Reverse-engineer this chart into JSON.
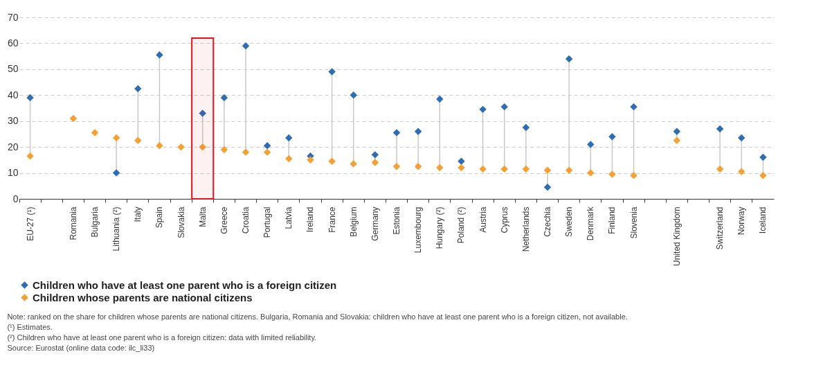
{
  "chart_data": {
    "type": "scatter",
    "categories": [
      "EU-27 (¹)",
      null,
      "Romania",
      "Bulgaria",
      "Lithuania (²)",
      "Italy",
      "Spain",
      "Slovakia",
      "Malta",
      "Greece",
      "Croatia",
      "Portugal",
      "Latvia",
      "Ireland",
      "France",
      "Belgium",
      "Germany",
      "Estonia",
      "Luxembourg",
      "Hungary (²)",
      "Poland (²)",
      "Austria",
      "Cyprus",
      "Netherlands",
      "Czechia",
      "Sweden",
      "Denmark",
      "Finland",
      "Slovenia",
      null,
      "United Kingdom",
      null,
      "Switzerland",
      "Norway",
      "Iceland"
    ],
    "series": [
      {
        "name": "Children who have at least one parent who is a foreign citizen",
        "color": "#2e6db4",
        "values": [
          39,
          null,
          null,
          null,
          10,
          42.5,
          55.5,
          null,
          33,
          39,
          59,
          20.5,
          23.5,
          16.5,
          49,
          40,
          17,
          25.5,
          26,
          38.5,
          14.5,
          34.5,
          35.5,
          27.5,
          4.5,
          54,
          21,
          24,
          35.5,
          null,
          26,
          null,
          27,
          23.5,
          16
        ]
      },
      {
        "name": "Children whose parents are national citizens",
        "color": "#f5a033",
        "values": [
          16.5,
          null,
          31,
          25.5,
          23.5,
          22.5,
          20.5,
          20,
          20,
          19,
          18,
          18,
          15.5,
          15,
          14.5,
          13.5,
          14,
          12.5,
          12.5,
          12,
          12,
          11.5,
          11.5,
          11.5,
          11,
          11,
          10,
          9.5,
          9,
          null,
          22.5,
          null,
          11.5,
          10.5,
          9
        ]
      }
    ],
    "ylim": [
      0,
      70
    ],
    "yticks": [
      0,
      10,
      20,
      30,
      40,
      50,
      60,
      70
    ],
    "grid": "y",
    "legend": "bottom",
    "marker": "diamond",
    "bands": [
      {
        "axis": "x",
        "from": "Malta",
        "to": "Malta",
        "color": "#e8101a"
      }
    ],
    "annotations": [
      "Note: ranked on the share for children whose parents are national citizens. Bulgaria, Romania and Slovakia: children who have at least one parent who is a foreign citizen, not available.",
      "(¹) Estimates.",
      "(²) Children who have at least one parent who is a foreign citizen: data with limited reliability.",
      "Source: Eurostat (online data code: ilc_li33)"
    ]
  }
}
